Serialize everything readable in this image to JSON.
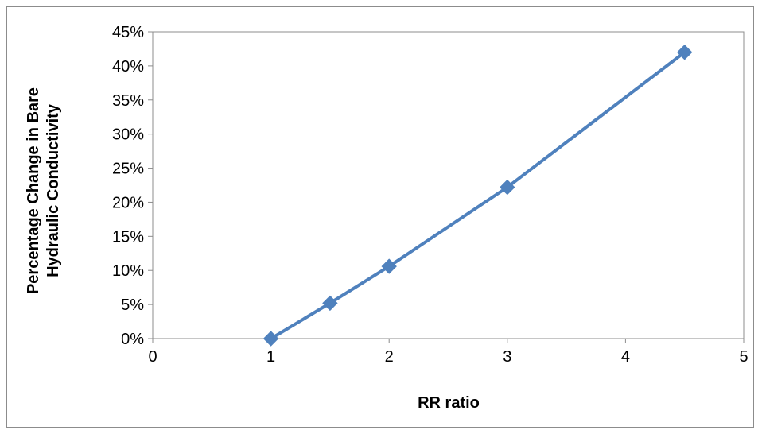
{
  "chart_data": {
    "type": "line",
    "title": "",
    "xlabel": "RR ratio",
    "ylabel_lines": [
      "Percentage Change in Bare",
      "Hydraulic Conductivity"
    ],
    "xlim": [
      0,
      5
    ],
    "ylim": [
      0,
      0.45
    ],
    "x_ticks": [
      0,
      1,
      2,
      3,
      4,
      5
    ],
    "x_tick_labels": [
      "0",
      "1",
      "2",
      "3",
      "4",
      "5"
    ],
    "y_ticks": [
      0,
      0.05,
      0.1,
      0.15,
      0.2,
      0.25,
      0.3,
      0.35,
      0.4,
      0.45
    ],
    "y_tick_labels": [
      "0%",
      "5%",
      "10%",
      "15%",
      "20%",
      "25%",
      "30%",
      "35%",
      "40%",
      "45%"
    ],
    "grid": false,
    "legend": "none",
    "series": [
      {
        "marker": "diamond",
        "color": "#4f81bd",
        "x": [
          1,
          1.5,
          2,
          3,
          4.5
        ],
        "y": [
          0.0,
          0.052,
          0.106,
          0.222,
          0.42
        ]
      }
    ]
  }
}
